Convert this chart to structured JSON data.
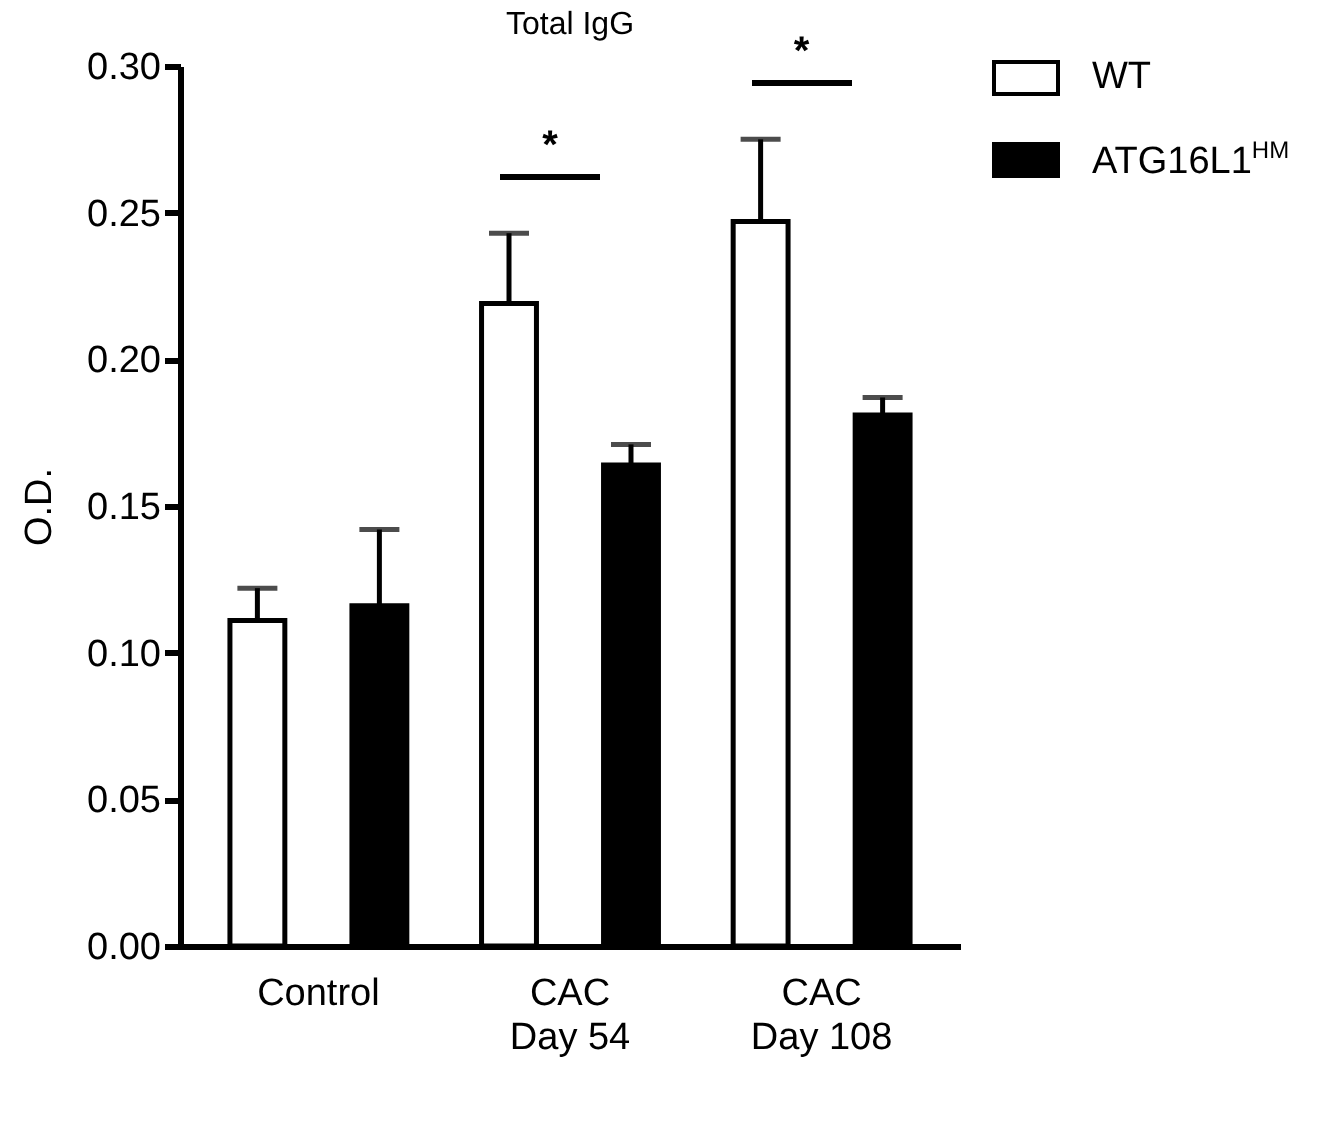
{
  "chart_data": {
    "type": "bar",
    "title": "Total IgG",
    "ylabel": "O.D.",
    "categories": [
      "Control",
      "CAC\nDay 54",
      "CAC\nDay 108"
    ],
    "series": [
      {
        "name": "WT",
        "color": "#ffffff",
        "values": [
          0.111,
          0.219,
          0.247
        ],
        "errors": [
          [
            0.111,
            0.122
          ],
          [
            0.219,
            0.243
          ],
          [
            0.247,
            0.275
          ]
        ]
      },
      {
        "name": "ATG16L1$^{HM}$",
        "color": "#000000",
        "values": [
          0.116,
          0.164,
          0.181
        ],
        "errors": [
          [
            0.116,
            0.142
          ],
          [
            0.164,
            0.171
          ],
          [
            0.181,
            0.187
          ]
        ]
      }
    ],
    "ylim": [
      0,
      0.3
    ],
    "yticks": [
      {
        "value": 0,
        "label": "0.00"
      },
      {
        "value": 0.05,
        "label": "0.05"
      },
      {
        "value": 0.1,
        "label": "0.10"
      },
      {
        "value": 0.15,
        "label": "0.15"
      },
      {
        "value": 0.2,
        "label": "0.20"
      },
      {
        "value": 0.25,
        "label": "0.25"
      },
      {
        "value": 0.3,
        "label": "0.30"
      }
    ],
    "annotations": [
      "*",
      "*"
    ],
    "grid": false,
    "legend": "top right"
  }
}
